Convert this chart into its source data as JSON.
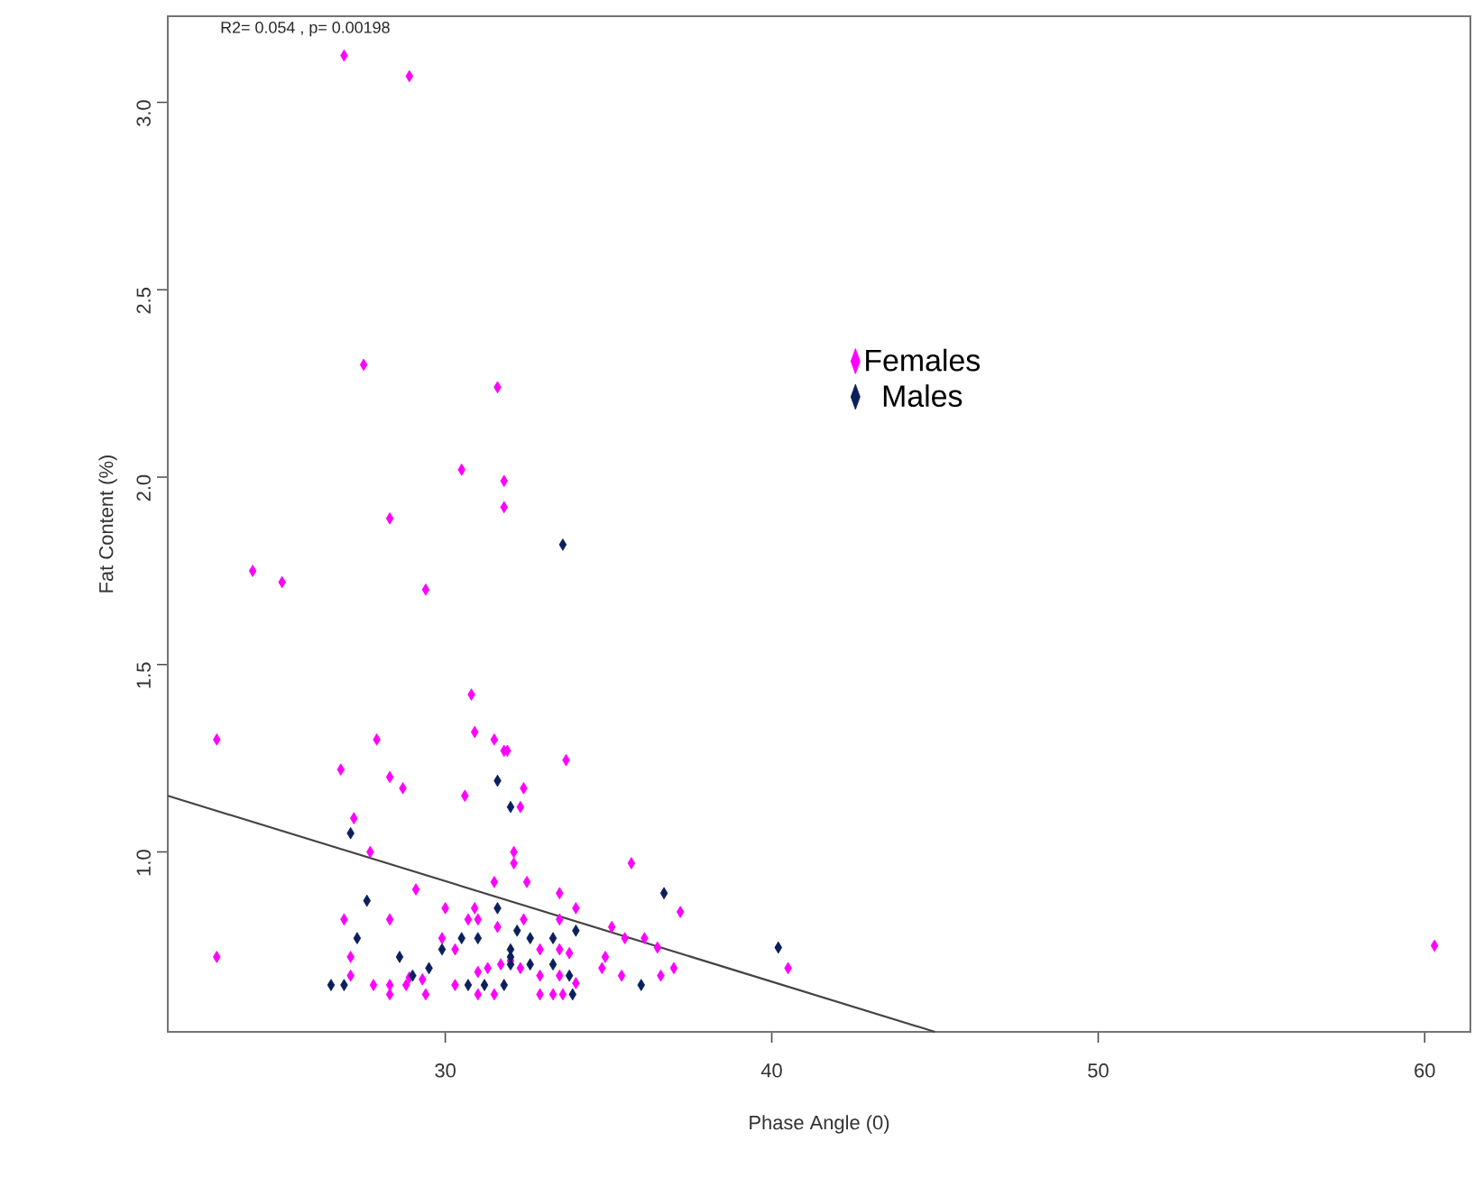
{
  "chart_data": {
    "type": "scatter",
    "xlabel": "Phase Angle (0)",
    "ylabel": "Fat Content (%)",
    "annotations": [
      "R2= 0.054 , p= 0.00198"
    ],
    "xlim": [
      21.5,
      61.4
    ],
    "ylim": [
      0.52,
      3.23
    ],
    "xticks": [
      30,
      40,
      50,
      60
    ],
    "yticks": [
      {
        "value": 1,
        "label": "1.0"
      },
      1.5,
      {
        "value": 2,
        "label": "2.0"
      },
      2.5,
      {
        "value": 3,
        "label": "3.0"
      }
    ],
    "legend": "top",
    "marker": "diamond",
    "grid": false,
    "series": [
      {
        "name": "Females",
        "color": "#ff00ff",
        "x": [
          26.9,
          28.9,
          27.5,
          31.6,
          30.5,
          31.8,
          31.8,
          28.3,
          24.1,
          25.0,
          29.4,
          30.8,
          23.0,
          27.9,
          30.9,
          31.5,
          31.8,
          26.8,
          28.3,
          28.7,
          30.6,
          27.2,
          27.7,
          32.1,
          32.1,
          31.5,
          29.1,
          26.9,
          28.3,
          30.0,
          30.9,
          23.0,
          27.1,
          29.9,
          30.3,
          29.3,
          28.9,
          27.1,
          27.8,
          28.3,
          28.3,
          28.8,
          29.4,
          30.3,
          31.0,
          31.5,
          31.0,
          31.3,
          31.7,
          31.6,
          30.7,
          31.0,
          31.9,
          33.7,
          32.4,
          32.3,
          35.7,
          32.5,
          33.5,
          37.2,
          34.0,
          32.4,
          33.5,
          35.1,
          35.5,
          36.1,
          36.5,
          40.5,
          34.8,
          34.9,
          35.4,
          36.6,
          37.0,
          32.9,
          33.5,
          32.3,
          32.9,
          33.5,
          32.9,
          33.3,
          33.6,
          33.8,
          34.0,
          32.0,
          60.3
        ],
        "values": [
          3.125,
          3.07,
          2.3,
          2.24,
          2.02,
          1.99,
          1.92,
          1.89,
          1.75,
          1.72,
          1.7,
          1.42,
          1.3,
          1.3,
          1.32,
          1.3,
          1.27,
          1.22,
          1.2,
          1.17,
          1.15,
          1.09,
          1.0,
          1.0,
          0.97,
          0.92,
          0.9,
          0.82,
          0.82,
          0.85,
          0.85,
          0.72,
          0.72,
          0.77,
          0.74,
          0.66,
          0.665,
          0.67,
          0.645,
          0.645,
          0.62,
          0.645,
          0.62,
          0.645,
          0.62,
          0.62,
          0.68,
          0.69,
          0.7,
          0.8,
          0.82,
          0.82,
          1.27,
          1.245,
          1.17,
          1.12,
          0.97,
          0.92,
          0.89,
          0.84,
          0.85,
          0.82,
          0.82,
          0.8,
          0.77,
          0.77,
          0.745,
          0.69,
          0.69,
          0.72,
          0.67,
          0.67,
          0.69,
          0.74,
          0.74,
          0.69,
          0.67,
          0.67,
          0.62,
          0.62,
          0.62,
          0.73,
          0.65,
          0.71,
          0.75
        ]
      },
      {
        "name": "Males",
        "color": "#0a1f5c",
        "x": [
          33.6,
          31.6,
          32.0,
          27.1,
          27.6,
          31.6,
          27.3,
          28.6,
          29.9,
          30.5,
          31.0,
          29.5,
          29.0,
          26.5,
          26.9,
          30.7,
          31.2,
          31.8,
          32.0,
          32.0,
          32.2,
          36.7,
          34.0,
          40.2,
          36.0,
          32.0,
          32.6,
          33.3,
          33.8,
          33.9,
          32.6,
          33.3
        ],
        "values": [
          1.82,
          1.19,
          1.12,
          1.05,
          0.87,
          0.85,
          0.77,
          0.72,
          0.74,
          0.77,
          0.77,
          0.69,
          0.67,
          0.645,
          0.645,
          0.645,
          0.645,
          0.645,
          0.72,
          0.74,
          0.79,
          0.89,
          0.79,
          0.745,
          0.645,
          0.7,
          0.77,
          0.77,
          0.67,
          0.62,
          0.7,
          0.7
        ]
      },
      {
        "type": "line",
        "color": "#444444",
        "marker": "none",
        "x": [
          21.5,
          45.0
        ],
        "values": [
          1.15,
          0.52
        ]
      }
    ]
  }
}
